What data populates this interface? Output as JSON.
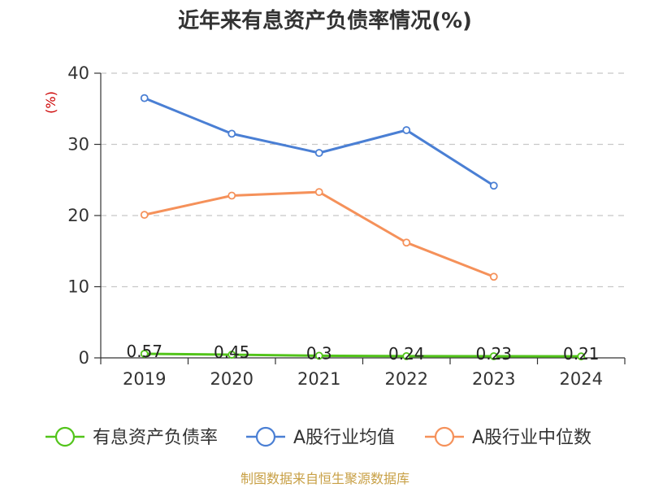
{
  "chart_data": {
    "type": "line",
    "title": "近年来有息资产负债率情况(%)",
    "ylabel": "(%)",
    "xlabel": "",
    "categories": [
      "2019",
      "2020",
      "2021",
      "2022",
      "2023",
      "2024"
    ],
    "ylim": [
      0,
      40
    ],
    "yticks": [
      0,
      10,
      20,
      30,
      40
    ],
    "grid": true,
    "legend_position": "bottom",
    "series": [
      {
        "name": "有息资产负债率",
        "color": "#52c41a",
        "values": [
          0.57,
          0.45,
          0.3,
          0.24,
          0.23,
          0.21
        ],
        "labels": [
          "0.57",
          "0.45",
          "0.3",
          "0.24",
          "0.23",
          "0.21"
        ]
      },
      {
        "name": "A股行业均值",
        "color": "#4a7fd4",
        "values": [
          36.5,
          31.5,
          28.8,
          32.0,
          24.2,
          null
        ]
      },
      {
        "name": "A股行业中位数",
        "color": "#f5915a",
        "values": [
          20.1,
          22.8,
          23.3,
          16.2,
          11.4,
          null
        ]
      }
    ]
  },
  "source": "制图数据来自恒生聚源数据库"
}
